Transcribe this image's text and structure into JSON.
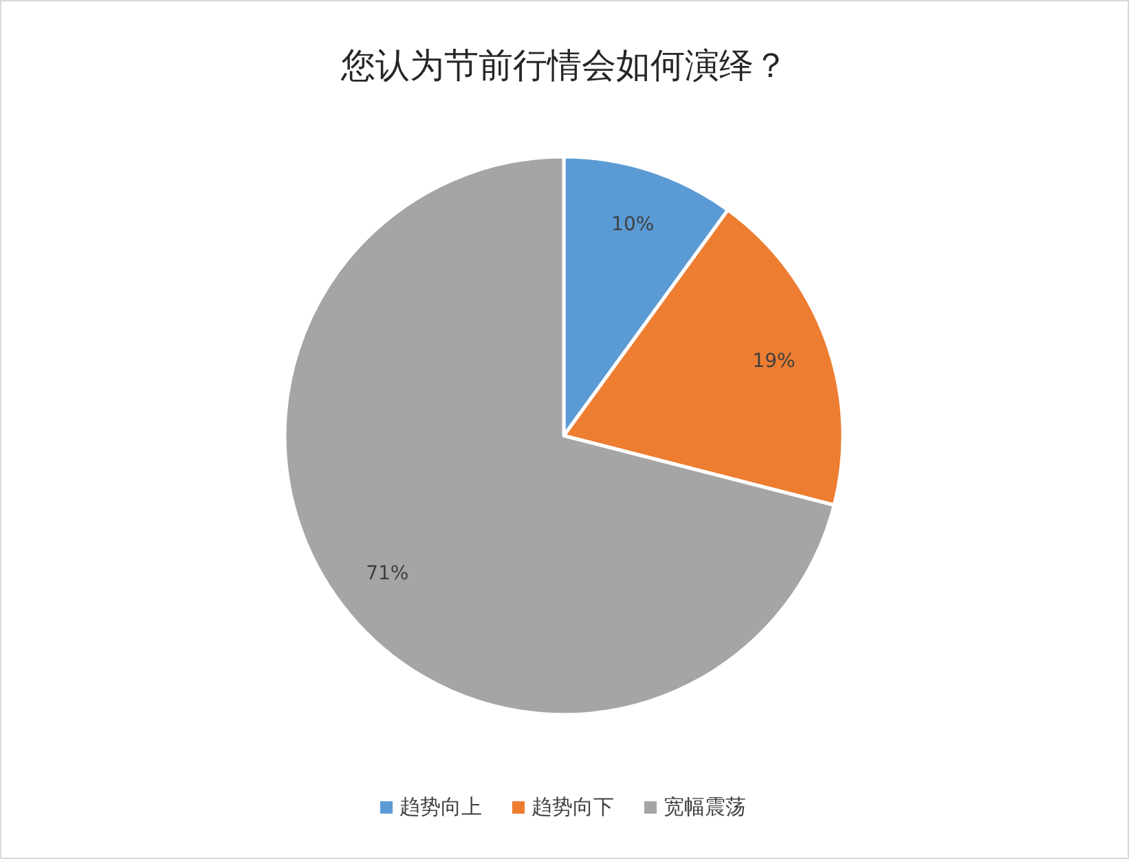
{
  "chart_data": {
    "type": "pie",
    "title": "您认为节前行情会如何演绎？",
    "categories": [
      "趋势向上",
      "趋势向下",
      "宽幅震荡"
    ],
    "values": [
      10,
      19,
      71
    ],
    "value_labels": [
      "10%",
      "19%",
      "71%"
    ],
    "colors": [
      "#5b9bd5",
      "#ed7d31",
      "#a5a5a5"
    ],
    "legend": "bottom"
  }
}
